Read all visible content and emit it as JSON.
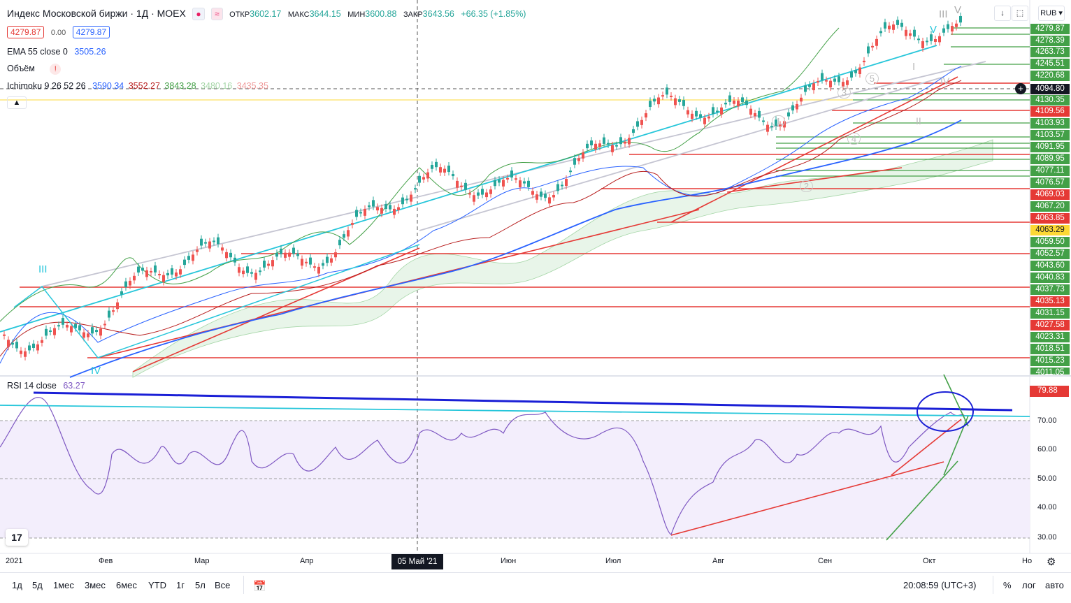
{
  "header": {
    "title": "Индекс Московской биржи · 1Д · MOEX",
    "open_label": "ОТКР",
    "open_value": "3602.17",
    "high_label": "МАКС",
    "high_value": "3644.15",
    "low_label": "МИН",
    "low_value": "3600.88",
    "close_label": "ЗАКР",
    "close_value": "3643.56",
    "change": "+66.35 (+1.85%)",
    "sell_price": "4279.87",
    "spread": "0.00",
    "buy_price": "4279.87",
    "currency": "RUB"
  },
  "indicators": {
    "ema_label": "EMA 55 close 0",
    "ema_value": "3505.26",
    "volume_label": "Объём",
    "volume_warning": "!",
    "ichimoku_label": "Ichimoku 9 26 52 26",
    "ichimoku_values": [
      "3590.34",
      "3552.27",
      "3843.28",
      "3480.16",
      "3435.35"
    ],
    "ichimoku_colors": [
      "#2962ff",
      "#b71c1c",
      "#43a047",
      "#a5d6a7",
      "#ef9a9a"
    ],
    "collapse_icon": "chevron-up-icon"
  },
  "price_labels": [
    {
      "value": "4279.87",
      "color": "#43a047"
    },
    {
      "value": "4278.39",
      "color": "#43a047"
    },
    {
      "value": "4263.73",
      "color": "#43a047"
    },
    {
      "value": "4245.51",
      "color": "#43a047"
    },
    {
      "value": "4220.68",
      "color": "#43a047"
    },
    {
      "value": "4094.80",
      "color": "#131722"
    },
    {
      "value": "4130.35",
      "color": "#43a047"
    },
    {
      "value": "4109.56",
      "color": "#e53935"
    },
    {
      "value": "4103.93",
      "color": "#43a047"
    },
    {
      "value": "4103.57",
      "color": "#43a047"
    },
    {
      "value": "4091.95",
      "color": "#43a047"
    },
    {
      "value": "4089.95",
      "color": "#43a047"
    },
    {
      "value": "4077.11",
      "color": "#43a047"
    },
    {
      "value": "4076.57",
      "color": "#43a047"
    },
    {
      "value": "4069.03",
      "color": "#e53935"
    },
    {
      "value": "4067.20",
      "color": "#43a047"
    },
    {
      "value": "4063.85",
      "color": "#e53935"
    },
    {
      "value": "4063.29",
      "color": "#fdd835"
    },
    {
      "value": "4059.50",
      "color": "#43a047"
    },
    {
      "value": "4052.57",
      "color": "#43a047"
    },
    {
      "value": "4043.60",
      "color": "#43a047"
    },
    {
      "value": "4040.83",
      "color": "#43a047"
    },
    {
      "value": "4037.73",
      "color": "#43a047"
    },
    {
      "value": "4035.13",
      "color": "#e53935"
    },
    {
      "value": "4031.15",
      "color": "#43a047"
    },
    {
      "value": "4027.58",
      "color": "#e53935"
    },
    {
      "value": "4023.31",
      "color": "#43a047"
    },
    {
      "value": "4018.51",
      "color": "#43a047"
    },
    {
      "value": "4015.23",
      "color": "#43a047"
    },
    {
      "value": "4011.05",
      "color": "#43a047"
    }
  ],
  "rsi": {
    "label": "RSI 14 close",
    "value": "63.27",
    "current": "79.88",
    "axis": [
      "70.00",
      "60.00",
      "50.00",
      "40.00",
      "30.00"
    ]
  },
  "wave_labels": [
    "III",
    "IV",
    "V",
    "III",
    "V",
    "I",
    "1",
    "2",
    "3",
    "4",
    "5",
    "II",
    "IV"
  ],
  "time_axis": {
    "labels": [
      "2021",
      "Фев",
      "Мар",
      "Апр",
      "Июн",
      "Июл",
      "Авг",
      "Сен",
      "Окт",
      "Но"
    ],
    "highlight": "05 Май '21"
  },
  "bottom_bar": {
    "timeframes": [
      "1д",
      "5д",
      "1мес",
      "3мес",
      "6мес",
      "YTD",
      "1г",
      "5л",
      "Все"
    ],
    "time": "20:08:59 (UTC+3)",
    "percent": "%",
    "log": "лог",
    "auto": "авто"
  }
}
